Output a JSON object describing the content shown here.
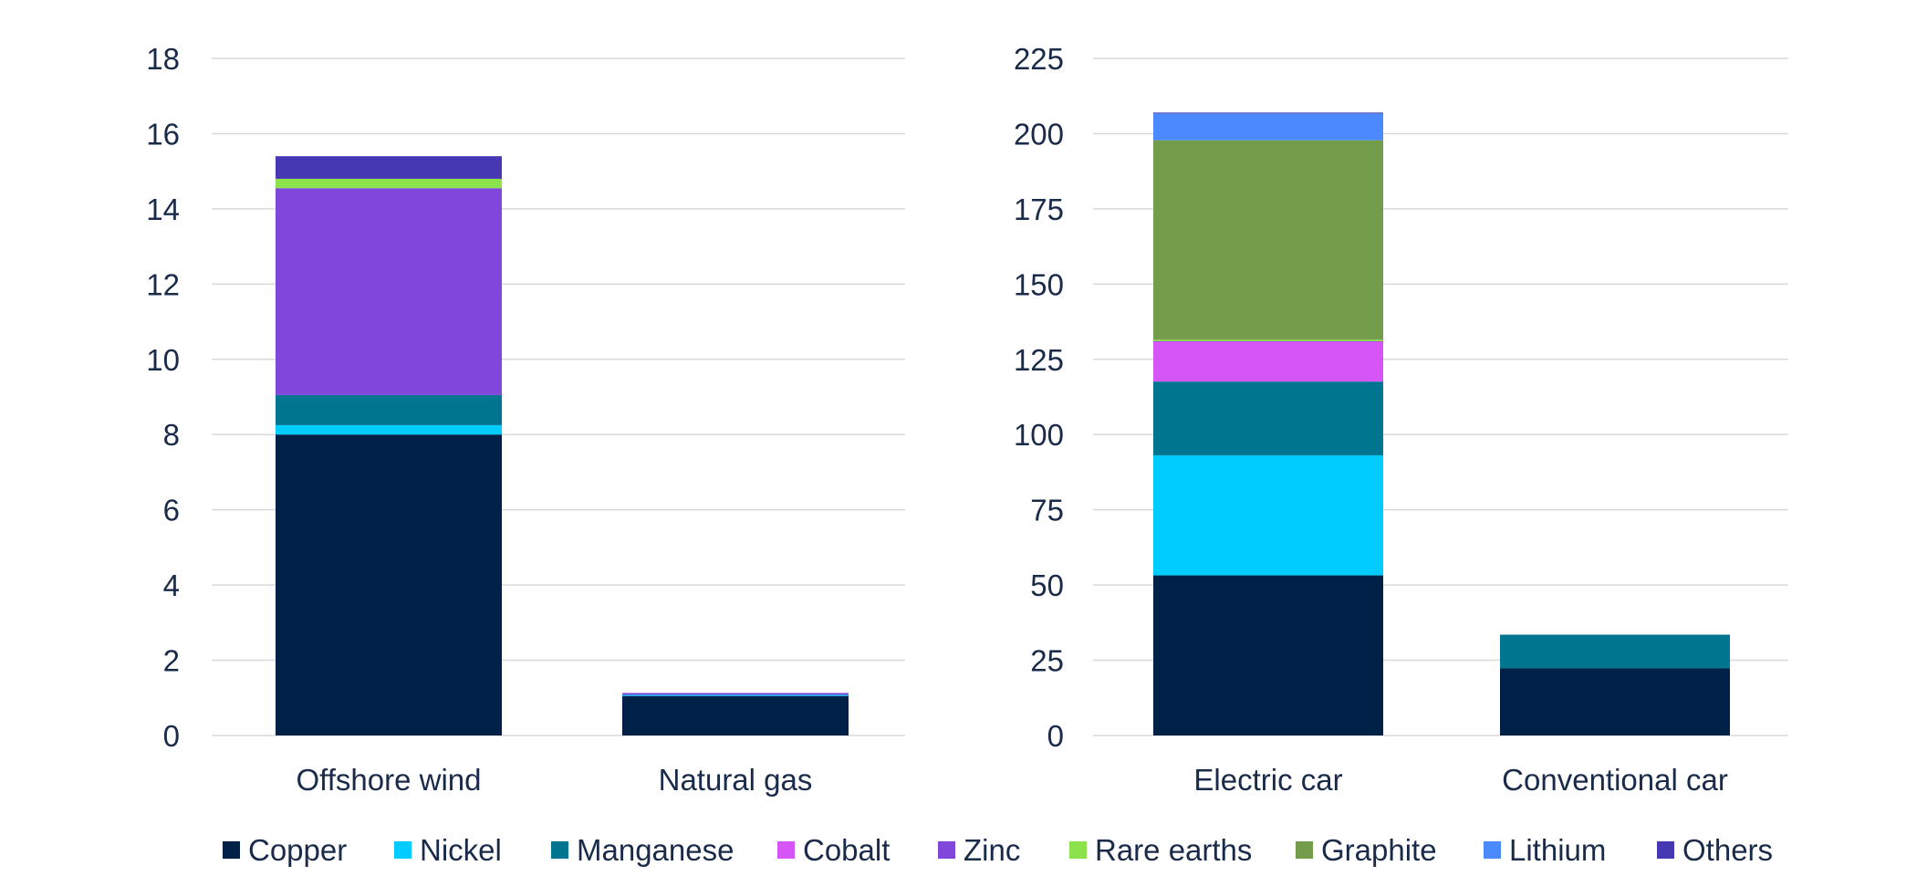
{
  "chart_data": [
    {
      "type": "bar",
      "stacked": true,
      "categories": [
        "Offshore wind",
        "Natural gas"
      ],
      "ylim": [
        0,
        18
      ],
      "yticks": [
        0,
        2,
        4,
        6,
        8,
        10,
        12,
        14,
        16,
        18
      ],
      "grid": true,
      "series": [
        {
          "name": "Copper",
          "values": [
            8.0,
            1.05
          ]
        },
        {
          "name": "Nickel",
          "values": [
            0.25,
            0.03
          ]
        },
        {
          "name": "Manganese",
          "values": [
            0.8,
            0.0
          ]
        },
        {
          "name": "Cobalt",
          "values": [
            0.0,
            0.0
          ]
        },
        {
          "name": "Zinc",
          "values": [
            5.5,
            0.05
          ]
        },
        {
          "name": "Rare earths",
          "values": [
            0.25,
            0.0
          ]
        },
        {
          "name": "Graphite",
          "values": [
            0.0,
            0.0
          ]
        },
        {
          "name": "Lithium",
          "values": [
            0.0,
            0.0
          ]
        },
        {
          "name": "Others",
          "values": [
            0.6,
            0.0
          ]
        }
      ]
    },
    {
      "type": "bar",
      "stacked": true,
      "categories": [
        "Electric car",
        "Conventional car"
      ],
      "ylim": [
        0,
        225
      ],
      "yticks": [
        0,
        25,
        50,
        75,
        100,
        125,
        150,
        175,
        200,
        225
      ],
      "grid": true,
      "series": [
        {
          "name": "Copper",
          "values": [
            53.2,
            22.3
          ]
        },
        {
          "name": "Nickel",
          "values": [
            39.9,
            0.0
          ]
        },
        {
          "name": "Manganese",
          "values": [
            24.5,
            11.2
          ]
        },
        {
          "name": "Cobalt",
          "values": [
            13.3,
            0.0
          ]
        },
        {
          "name": "Zinc",
          "values": [
            0.1,
            0.0
          ]
        },
        {
          "name": "Rare earths",
          "values": [
            0.5,
            0.0
          ]
        },
        {
          "name": "Graphite",
          "values": [
            66.3,
            0.0
          ]
        },
        {
          "name": "Lithium",
          "values": [
            8.9,
            0.0
          ]
        },
        {
          "name": "Others",
          "values": [
            0.3,
            0.0
          ]
        }
      ]
    }
  ],
  "legend": {
    "position": "bottom",
    "items": [
      {
        "name": "Copper",
        "color": "#002147"
      },
      {
        "name": "Nickel",
        "color": "#00ccff"
      },
      {
        "name": "Manganese",
        "color": "#00758f"
      },
      {
        "name": "Cobalt",
        "color": "#d655f7"
      },
      {
        "name": "Zinc",
        "color": "#8048da"
      },
      {
        "name": "Rare earths",
        "color": "#8ce24a"
      },
      {
        "name": "Graphite",
        "color": "#739c4b"
      },
      {
        "name": "Lithium",
        "color": "#4b89ff"
      },
      {
        "name": "Others",
        "color": "#4638b3"
      }
    ]
  }
}
